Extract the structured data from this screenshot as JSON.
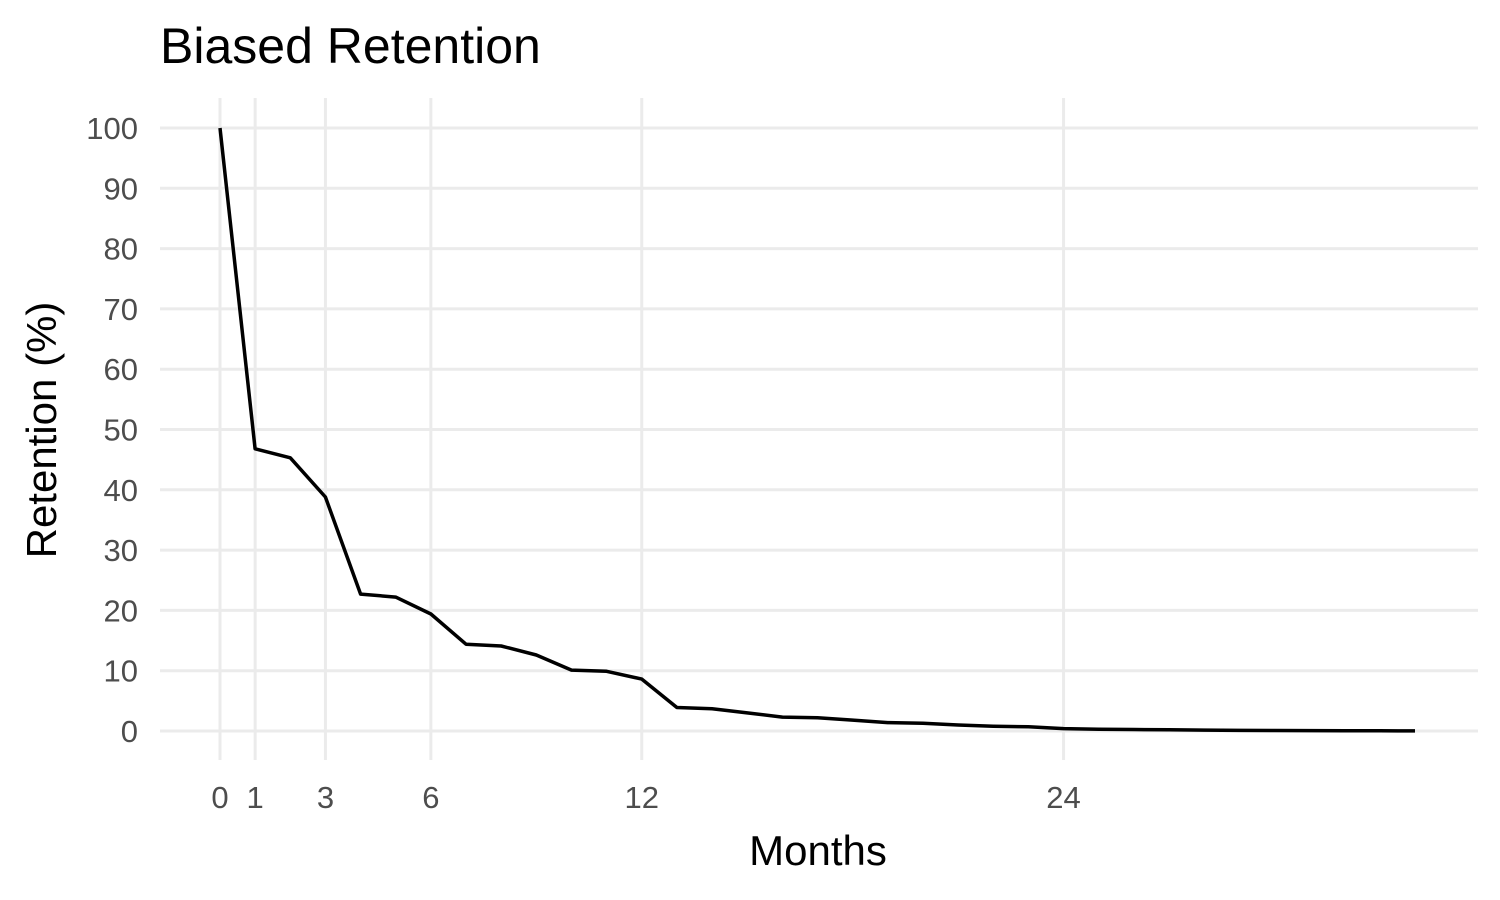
{
  "chart_data": {
    "type": "line",
    "title": "Biased Retention",
    "xlabel": "Months",
    "ylabel": "Retention (%)",
    "xlim": [
      0,
      34
    ],
    "ylim": [
      0,
      100
    ],
    "x_ticks": [
      0,
      1,
      3,
      6,
      12,
      24
    ],
    "y_ticks": [
      0,
      10,
      20,
      30,
      40,
      50,
      60,
      70,
      80,
      90,
      100
    ],
    "grid": true,
    "legend": "none",
    "line_color": "#000000",
    "series": [
      {
        "x": [
          0,
          1,
          2,
          3,
          4,
          5,
          6,
          7,
          8,
          9,
          10,
          11,
          12,
          13,
          14,
          15,
          16,
          17,
          18,
          19,
          20,
          21,
          22,
          23,
          24,
          25,
          26,
          27,
          28,
          29,
          30,
          31,
          32,
          33,
          34
        ],
        "values": [
          100,
          46.8,
          45.3,
          38.8,
          22.7,
          22.2,
          19.4,
          14.4,
          14.1,
          12.6,
          10.1,
          9.9,
          8.6,
          3.9,
          3.7,
          3.0,
          2.3,
          2.2,
          1.8,
          1.4,
          1.3,
          1.0,
          0.8,
          0.7,
          0.4,
          0.3,
          0.25,
          0.2,
          0.15,
          0.1,
          0.08,
          0.06,
          0.05,
          0.03,
          0.02
        ]
      }
    ]
  }
}
